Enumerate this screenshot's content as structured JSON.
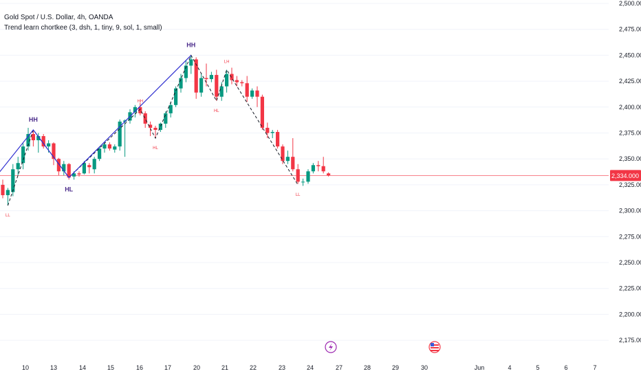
{
  "header": {
    "symbol_title": "Gold Spot / U.S. Dollar, 4h, OANDA",
    "indicator": "Trend learn chortkee (3, dsh, 1, tiny, 9, sol, 1, small)"
  },
  "colors": {
    "up": "#089981",
    "down": "#f23645",
    "zigzag_solid": "#3030d0",
    "zigzag_dashed": "#131722",
    "label_major": "#4a2a8a",
    "label_minor": "#f23645",
    "price_line": "#f23645",
    "event_lightning": "#9c27b0",
    "event_flag": "#f23645"
  },
  "chart_data": {
    "type": "candlestick",
    "ylim": [
      2170,
      2505
    ],
    "y_ticks": [
      "2,500.000",
      "2,475.000",
      "2,450.000",
      "2,425.000",
      "2,400.000",
      "2,375.000",
      "2,350.000",
      "2,325.000",
      "2,300.000",
      "2,275.000",
      "2,250.000",
      "2,225.000",
      "2,200.000",
      "2,175.000"
    ],
    "x_ticks": [
      "10",
      "13",
      "14",
      "15",
      "16",
      "17",
      "20",
      "21",
      "22",
      "23",
      "24",
      "27",
      "28",
      "29",
      "30",
      "Jun",
      "4",
      "5",
      "6",
      "7"
    ],
    "grid": true,
    "current_price": 2334,
    "current_price_label": "2,334.000",
    "candles_ohlc": [
      [
        2325,
        2330,
        2312,
        2315
      ],
      [
        2315,
        2322,
        2305,
        2320
      ],
      [
        2318,
        2345,
        2314,
        2340
      ],
      [
        2340,
        2352,
        2334,
        2346
      ],
      [
        2346,
        2365,
        2340,
        2362
      ],
      [
        2362,
        2380,
        2358,
        2374
      ],
      [
        2374,
        2378,
        2362,
        2368
      ],
      [
        2368,
        2375,
        2356,
        2372
      ],
      [
        2372,
        2374,
        2360,
        2362
      ],
      [
        2362,
        2368,
        2356,
        2365
      ],
      [
        2365,
        2366,
        2344,
        2350
      ],
      [
        2350,
        2351,
        2334,
        2338
      ],
      [
        2338,
        2348,
        2334,
        2345
      ],
      [
        2345,
        2346,
        2330,
        2332
      ],
      [
        2333,
        2338,
        2330,
        2336
      ],
      [
        2336,
        2338,
        2333,
        2335
      ],
      [
        2336,
        2348,
        2335,
        2346
      ],
      [
        2344,
        2346,
        2336,
        2342
      ],
      [
        2340,
        2352,
        2336,
        2350
      ],
      [
        2350,
        2362,
        2348,
        2360
      ],
      [
        2360,
        2366,
        2356,
        2364
      ],
      [
        2364,
        2366,
        2358,
        2360
      ],
      [
        2359,
        2364,
        2356,
        2362
      ],
      [
        2362,
        2388,
        2358,
        2386
      ],
      [
        2386,
        2388,
        2352,
        2387
      ],
      [
        2387,
        2398,
        2384,
        2395
      ],
      [
        2395,
        2402,
        2390,
        2400
      ],
      [
        2400,
        2404,
        2392,
        2394
      ],
      [
        2394,
        2396,
        2380,
        2384
      ],
      [
        2383,
        2386,
        2372,
        2380
      ],
      [
        2380,
        2382,
        2370,
        2378
      ],
      [
        2378,
        2385,
        2376,
        2384
      ],
      [
        2384,
        2396,
        2380,
        2394
      ],
      [
        2394,
        2405,
        2390,
        2402
      ],
      [
        2402,
        2420,
        2400,
        2418
      ],
      [
        2418,
        2432,
        2414,
        2428
      ],
      [
        2428,
        2445,
        2424,
        2440
      ],
      [
        2440,
        2450,
        2432,
        2446
      ],
      [
        2446,
        2448,
        2408,
        2414
      ],
      [
        2414,
        2432,
        2410,
        2428
      ],
      [
        2428,
        2442,
        2420,
        2427
      ],
      [
        2427,
        2434,
        2424,
        2431
      ],
      [
        2431,
        2436,
        2406,
        2410
      ],
      [
        2410,
        2424,
        2406,
        2420
      ],
      [
        2420,
        2436,
        2414,
        2432
      ],
      [
        2432,
        2438,
        2422,
        2426
      ],
      [
        2426,
        2430,
        2420,
        2424
      ],
      [
        2424,
        2426,
        2420,
        2423
      ],
      [
        2423,
        2430,
        2405,
        2410
      ],
      [
        2410,
        2418,
        2408,
        2416
      ],
      [
        2416,
        2420,
        2400,
        2410
      ],
      [
        2410,
        2412,
        2378,
        2380
      ],
      [
        2380,
        2385,
        2370,
        2375
      ],
      [
        2375,
        2378,
        2370,
        2376
      ],
      [
        2376,
        2378,
        2360,
        2362
      ],
      [
        2362,
        2364,
        2345,
        2348
      ],
      [
        2348,
        2358,
        2345,
        2352
      ],
      [
        2352,
        2370,
        2338,
        2340
      ],
      [
        2340,
        2345,
        2326,
        2328
      ],
      [
        2328,
        2331,
        2324,
        2328
      ],
      [
        2328,
        2340,
        2326,
        2338
      ],
      [
        2338,
        2346,
        2336,
        2344
      ],
      [
        2344,
        2348,
        2338,
        2343
      ],
      [
        2343,
        2352,
        2336,
        2338
      ],
      [
        2336,
        2337,
        2333,
        2334
      ]
    ],
    "zigzag_solid": [
      [
        -1,
        2335
      ],
      [
        6,
        2378
      ],
      [
        13,
        2332
      ],
      [
        37,
        2450
      ]
    ],
    "zigzag_dashed": [
      [
        1,
        2305
      ],
      [
        6,
        2378
      ],
      [
        13,
        2332
      ],
      [
        27,
        2398
      ],
      [
        30,
        2370
      ],
      [
        37,
        2450
      ],
      [
        42,
        2406
      ],
      [
        44,
        2436
      ],
      [
        58,
        2325
      ]
    ],
    "pivot_labels": [
      {
        "text": "LL",
        "index": 1,
        "price": 2305,
        "pos": "below",
        "style": "minor"
      },
      {
        "text": "HH",
        "index": 6,
        "price": 2378,
        "pos": "above",
        "style": "major"
      },
      {
        "text": "HL",
        "index": 13,
        "price": 2332,
        "pos": "below",
        "style": "major"
      },
      {
        "text": "HH",
        "index": 27,
        "price": 2398,
        "pos": "above",
        "style": "minor"
      },
      {
        "text": "HL",
        "index": 30,
        "price": 2370,
        "pos": "below",
        "style": "minor"
      },
      {
        "text": "HH",
        "index": 37,
        "price": 2450,
        "pos": "above",
        "style": "major"
      },
      {
        "text": "HL",
        "index": 42,
        "price": 2406,
        "pos": "below",
        "style": "minor"
      },
      {
        "text": "LH",
        "index": 44,
        "price": 2436,
        "pos": "above",
        "style": "minor"
      },
      {
        "text": "LL",
        "index": 58,
        "price": 2325,
        "pos": "below",
        "style": "minor"
      }
    ]
  },
  "events": [
    {
      "icon": "lightning-icon"
    },
    {
      "icon": "us-flag-icon"
    }
  ]
}
